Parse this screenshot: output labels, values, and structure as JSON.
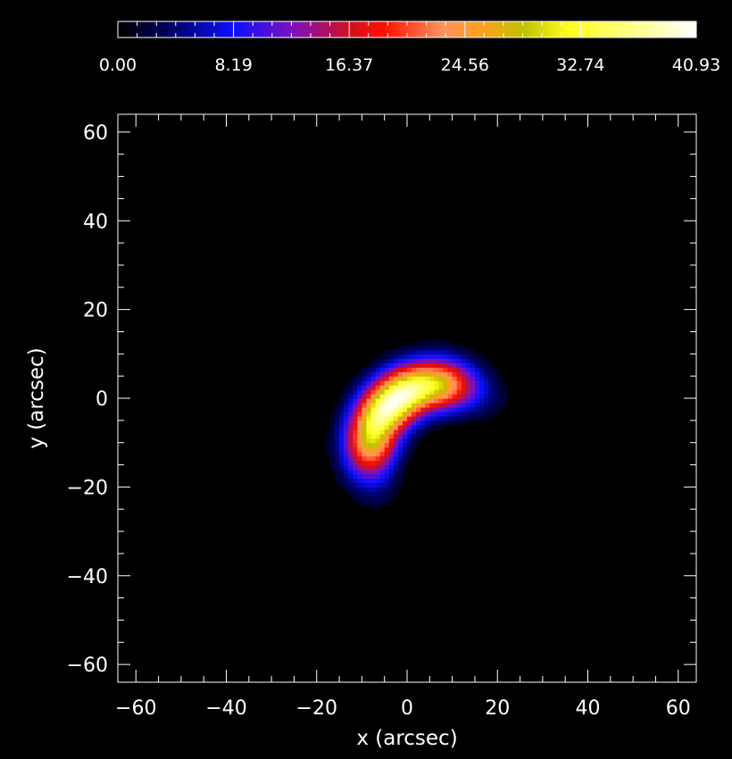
{
  "chart_data": {
    "type": "heatmap",
    "title": "",
    "xlabel": "x (arcsec)",
    "ylabel": "y (arcsec)",
    "xlim": [
      -64,
      64
    ],
    "ylim": [
      -64,
      64
    ],
    "x_ticks": [
      "−60",
      "−40",
      "−20",
      "0",
      "20",
      "40",
      "60"
    ],
    "y_ticks": [
      "60",
      "40",
      "20",
      "0",
      "−20",
      "−40",
      "−60"
    ],
    "x_tick_values": [
      -60,
      -40,
      -20,
      0,
      20,
      40,
      60
    ],
    "y_tick_values": [
      60,
      40,
      20,
      0,
      -20,
      -40,
      -60
    ],
    "colorbar": {
      "min": 0.0,
      "max": 40.93,
      "tick_labels": [
        "0.00",
        "8.19",
        "16.37",
        "24.56",
        "32.74",
        "40.93"
      ],
      "tick_values": [
        0.0,
        8.19,
        16.37,
        24.56,
        32.74,
        40.93
      ],
      "colormap": "red-temperature (black-blue-red-orange-yellow-white)"
    },
    "source": {
      "shape": "curved arc (crescent)",
      "arc_center": [
        7,
        -12
      ],
      "arc_radius_arcsec": 15,
      "arc_start_angle_deg": 90,
      "arc_end_angle_deg": 170,
      "arc_width_arcsec": 5.5,
      "peak_value": 40.93,
      "peak_location": [
        -3,
        0
      ]
    },
    "grid": false,
    "background": "#000000"
  }
}
